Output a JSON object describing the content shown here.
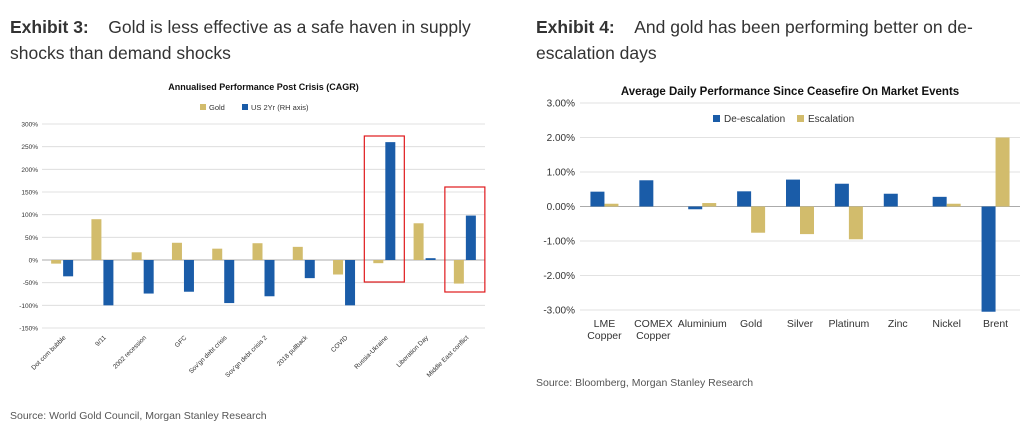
{
  "exhibit3": {
    "label": "Exhibit 3:",
    "text": "Gold is less effective as a safe haven in supply shocks than demand shocks",
    "source": "Source: World Gold Council, Morgan Stanley Research"
  },
  "exhibit4": {
    "label": "Exhibit 4:",
    "text": "And gold has been performing better on de-escalation days",
    "source": "Source: Bloomberg, Morgan Stanley Research"
  },
  "colors": {
    "gold": "#D2BC6C",
    "blue": "#1A5CA8",
    "highlight": "#E0191C",
    "grid": "#D9D9D9"
  },
  "chart_data": [
    {
      "type": "bar",
      "title": "Annualised Performance Post Crisis (CAGR)",
      "categories": [
        "Dot com bubble",
        "9/11",
        "2002 recession",
        "GFC",
        "Sov'gn debt crisis",
        "Sov'gn debt crisis 2",
        "2018 pullback",
        "COVID",
        "Russia-Ukraine",
        "Liberation Day",
        "Middle East conflict"
      ],
      "series": [
        {
          "name": "Gold",
          "values": [
            -8,
            90,
            17,
            38,
            25,
            37,
            29,
            -32,
            -7,
            81,
            -52
          ]
        },
        {
          "name": "US 2Yr (RH axis)",
          "values": [
            -36,
            -100,
            -74,
            -70,
            -95,
            -80,
            -40,
            -100,
            260,
            4,
            98
          ]
        }
      ],
      "ylim": [
        -150,
        300
      ],
      "yticks": [
        "300%",
        "250%",
        "200%",
        "150%",
        "100%",
        "50%",
        "0%",
        "-50%",
        "-100%",
        "-150%"
      ],
      "highlighted_categories": [
        "Russia-Ukraine",
        "Middle East conflict"
      ],
      "legend": "top",
      "grid": true
    },
    {
      "type": "bar",
      "title": "Average Daily Performance Since Ceasefire On Market Events",
      "categories": [
        [
          "LME",
          "Copper"
        ],
        [
          "COMEX",
          "Copper"
        ],
        [
          "Aluminium"
        ],
        [
          "Gold"
        ],
        [
          "Silver"
        ],
        [
          "Platinum"
        ],
        [
          "Zinc"
        ],
        [
          "Nickel"
        ],
        [
          "Brent"
        ]
      ],
      "series": [
        {
          "name": "De-escalation",
          "values": [
            0.43,
            0.76,
            -0.08,
            0.44,
            0.78,
            0.66,
            0.37,
            0.28,
            -3.05
          ]
        },
        {
          "name": "Escalation",
          "values": [
            0.08,
            0.0,
            0.1,
            -0.76,
            -0.8,
            -0.95,
            0.0,
            0.08,
            2.0
          ]
        }
      ],
      "ylim": [
        -3.0,
        3.0
      ],
      "yticks": [
        "3.00%",
        "2.00%",
        "1.00%",
        "0.00%",
        "-1.00%",
        "-2.00%",
        "-3.00%"
      ],
      "legend": "top",
      "grid": true
    }
  ]
}
